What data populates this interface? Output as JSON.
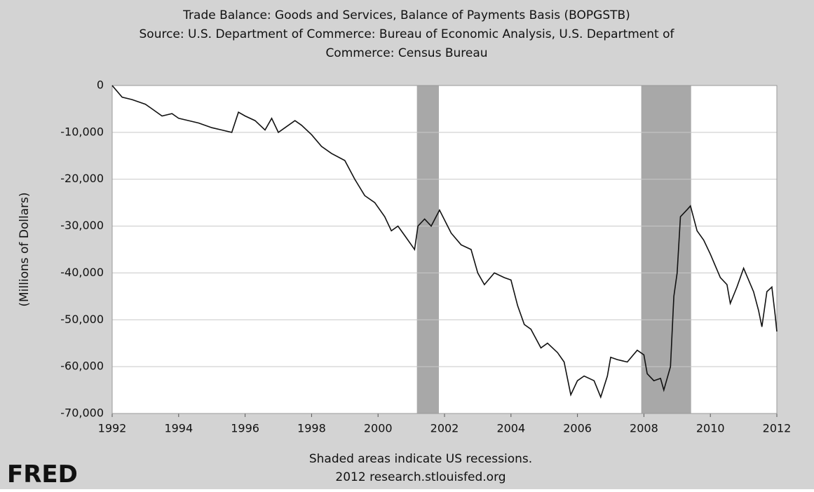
{
  "chart_data": {
    "type": "line",
    "title": [
      "Trade Balance: Goods and Services, Balance of Payments Basis (BOPGSTB)",
      "Source: U.S. Department of Commerce: Bureau of Economic Analysis, U.S. Department of",
      "Commerce: Census Bureau"
    ],
    "y_label": "(Millions of Dollars)",
    "notes": [
      "Shaded areas indicate US recessions.",
      "2012 research.stlouisfed.org"
    ],
    "logo": "FRED",
    "shaded_ranges": [
      [
        2001.17,
        2001.83
      ],
      [
        2007.92,
        2009.42
      ]
    ],
    "shade_color": "#a8a8a8",
    "grid": true,
    "xlim": [
      1992,
      2012
    ],
    "xticks": [
      1992,
      1994,
      1996,
      1998,
      2000,
      2002,
      2004,
      2006,
      2008,
      2010,
      2012
    ],
    "ylim": [
      -70000,
      0
    ],
    "yticks": [
      0,
      {
        "value": -10000,
        "label": "-10,000"
      },
      {
        "value": -20000,
        "label": "-20,000"
      },
      {
        "value": -30000,
        "label": "-30,000"
      },
      {
        "value": -40000,
        "label": "-40,000"
      },
      {
        "value": -50000,
        "label": "-50,000"
      },
      {
        "value": -60000,
        "label": "-60,000"
      },
      {
        "value": -70000,
        "label": "-70,000"
      }
    ],
    "x": [
      1992.0,
      1992.3,
      1992.6,
      1993.0,
      1993.2,
      1993.5,
      1993.8,
      1994.0,
      1994.3,
      1994.6,
      1995.0,
      1995.3,
      1995.6,
      1995.8,
      1996.0,
      1996.3,
      1996.6,
      1996.8,
      1997.0,
      1997.2,
      1997.5,
      1997.7,
      1998.0,
      1998.3,
      1998.6,
      1999.0,
      1999.3,
      1999.6,
      1999.9,
      2000.2,
      2000.4,
      2000.6,
      2000.8,
      2001.0,
      2001.1,
      2001.2,
      2001.4,
      2001.6,
      2001.85,
      2002.2,
      2002.5,
      2002.8,
      2003.0,
      2003.2,
      2003.5,
      2003.8,
      2004.0,
      2004.2,
      2004.4,
      2004.6,
      2004.9,
      2005.1,
      2005.4,
      2005.6,
      2005.8,
      2006.0,
      2006.2,
      2006.5,
      2006.7,
      2006.9,
      2007.0,
      2007.2,
      2007.5,
      2007.8,
      2008.0,
      2008.1,
      2008.3,
      2008.5,
      2008.6,
      2008.8,
      2008.9,
      2009.0,
      2009.1,
      2009.3,
      2009.4,
      2009.6,
      2009.8,
      2010.0,
      2010.3,
      2010.5,
      2010.6,
      2010.8,
      2011.0,
      2011.3,
      2011.45,
      2011.55,
      2011.7,
      2011.85,
      2011.95,
      2012.0
    ],
    "series": [
      {
        "name": "BOPGSTB",
        "color": "#111111",
        "values": [
          0,
          -2500,
          -3000,
          -4000,
          -5000,
          -6500,
          -6000,
          -7000,
          -7500,
          -8000,
          -9000,
          -9500,
          -10000,
          -5700,
          -6500,
          -7500,
          -9500,
          -7000,
          -10000,
          -9000,
          -7500,
          -8500,
          -10500,
          -13000,
          -14500,
          -16000,
          -20000,
          -23500,
          -25000,
          -28000,
          -31000,
          -30000,
          -32000,
          -34000,
          -35000,
          -30000,
          -28500,
          -30000,
          -26600,
          -31500,
          -34000,
          -35000,
          -40000,
          -42500,
          -40000,
          -41000,
          -41500,
          -47000,
          -51000,
          -52000,
          -56000,
          -55000,
          -57000,
          -59000,
          -66000,
          -63000,
          -62000,
          -63000,
          -66500,
          -62000,
          -58000,
          -58500,
          -59000,
          -56500,
          -57500,
          -61500,
          -63000,
          -62500,
          -65000,
          -60000,
          -45000,
          -40000,
          -28000,
          -26500,
          -25700,
          -31000,
          -33000,
          -36000,
          -41000,
          -42500,
          -46500,
          -43000,
          -39000,
          -44000,
          -48000,
          -51500,
          -44000,
          -43000,
          -49000,
          -52500
        ]
      }
    ]
  }
}
